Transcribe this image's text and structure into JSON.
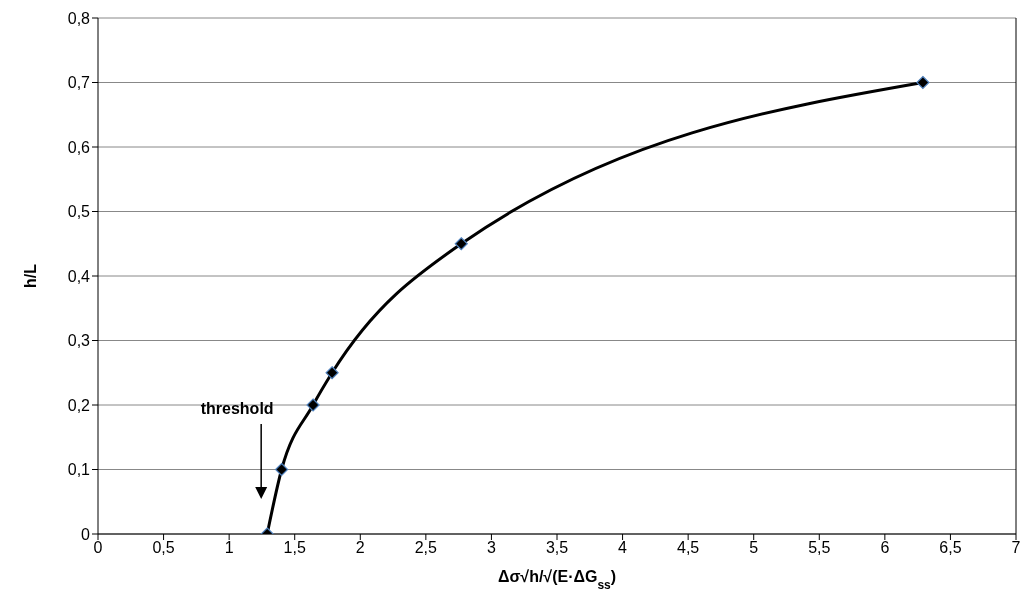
{
  "chart_data": {
    "type": "line",
    "xlabel": "Δσ√h/√(E·ΔG$_{ss}$)",
    "ylabel": "h/L",
    "x": [
      1.29,
      1.4,
      1.64,
      1.785,
      2.77,
      6.29
    ],
    "series": [
      {
        "color": "#000000",
        "values": [
          0,
          0.1,
          0.2,
          0.25,
          0.45,
          0.7
        ]
      }
    ],
    "xlim": [
      0,
      7
    ],
    "xticks": [
      0,
      {
        "value": 0.5,
        "label": "0,5"
      },
      1,
      {
        "value": 1.5,
        "label": "1,5"
      },
      2,
      {
        "value": 2.5,
        "label": "2,5"
      },
      3,
      {
        "value": 3.5,
        "label": "3,5"
      },
      4,
      {
        "value": 4.5,
        "label": "4,5"
      },
      5,
      {
        "value": 5.5,
        "label": "5,5"
      },
      6,
      {
        "value": 6.5,
        "label": "6,5"
      },
      7
    ],
    "ylim": [
      0,
      0.8
    ],
    "yticks": [
      0,
      {
        "value": 0.1,
        "label": "0,1"
      },
      {
        "value": 0.2,
        "label": "0,2"
      },
      {
        "value": 0.3,
        "label": "0,3"
      },
      {
        "value": 0.4,
        "label": "0,4"
      },
      {
        "value": 0.5,
        "label": "0,5"
      },
      {
        "value": 0.6,
        "label": "0,6"
      },
      {
        "value": 0.7,
        "label": "0,7"
      },
      {
        "value": 0.8,
        "label": "0,8"
      }
    ],
    "grid": "y",
    "marker": "diamond",
    "line_style": "solid",
    "annotations": [
      "threshold"
    ]
  }
}
